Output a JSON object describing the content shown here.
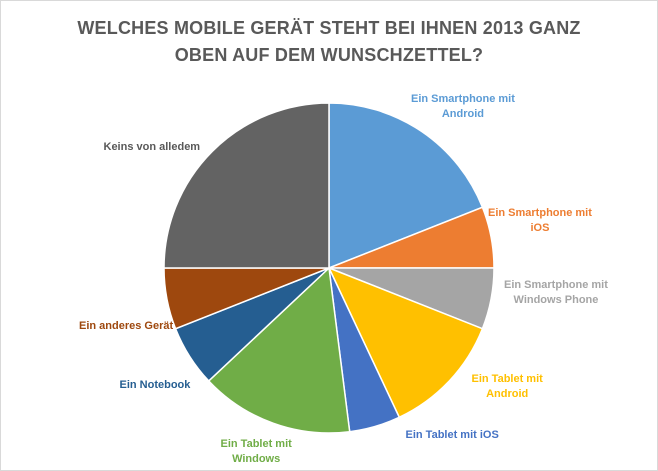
{
  "chart_data": {
    "type": "pie",
    "title_lines": [
      "WELCHES MOBILE GERÄT STEHT BEI IHNEN 2013 GANZ",
      "OBEN AUF DEM WUNSCHZETTEL?"
    ],
    "start_angle_deg": 0,
    "direction": "clockwise",
    "slices": [
      {
        "label_lines": [
          "Ein Smartphone mit",
          "Android"
        ],
        "value": 19,
        "color": "#5B9BD5"
      },
      {
        "label_lines": [
          "Ein Smartphone mit",
          "iOS"
        ],
        "value": 6,
        "color": "#ED7D31"
      },
      {
        "label_lines": [
          "Ein Smartphone mit",
          "Windows Phone"
        ],
        "value": 6,
        "color": "#A5A5A5"
      },
      {
        "label_lines": [
          "Ein Tablet mit",
          "Android"
        ],
        "value": 12,
        "color": "#FFC000"
      },
      {
        "label_lines": [
          "Ein Tablet mit iOS"
        ],
        "value": 5,
        "color": "#4472C4"
      },
      {
        "label_lines": [
          "Ein Tablet mit",
          "Windows"
        ],
        "value": 15,
        "color": "#70AD47"
      },
      {
        "label_lines": [
          "Ein Notebook"
        ],
        "value": 6,
        "color": "#255E91"
      },
      {
        "label_lines": [
          "Ein anderes Gerät"
        ],
        "value": 6,
        "color": "#9E480E"
      },
      {
        "label_lines": [
          "Keins von alledem"
        ],
        "value": 25,
        "color": "#636363"
      }
    ],
    "legend": "none",
    "data_labels": "category names outside slices"
  }
}
